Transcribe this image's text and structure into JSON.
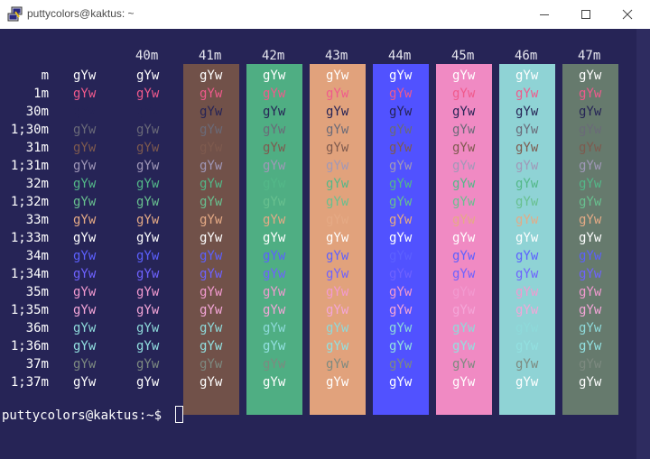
{
  "window": {
    "title": "puttycolors@kaktus: ~",
    "app_icon": "putty-icon",
    "buttons": {
      "minimize": "minimize-icon",
      "maximize": "maximize-icon",
      "close": "close-icon"
    }
  },
  "terminal": {
    "background": "#262456",
    "column_headers": [
      "40m",
      "41m",
      "42m",
      "43m",
      "44m",
      "45m",
      "46m",
      "47m"
    ],
    "column_backgrounds": [
      "",
      "#715149",
      "#4fae83",
      "#e1a27c",
      "#5152ff",
      "#f08ac3",
      "#8fd3d5",
      "#667a6d"
    ],
    "row_labels": [
      "m",
      "1m",
      "30m",
      "1;30m",
      "31m",
      "1;31m",
      "32m",
      "1;32m",
      "33m",
      "1;33m",
      "34m",
      "1;34m",
      "35m",
      "1;35m",
      "36m",
      "1;36m",
      "37m",
      "1;37m"
    ],
    "sample_text": "gYw",
    "row_colors": [
      "#ffffff",
      "#f05a8c",
      "#262456",
      "#6a6a78",
      "#7e5a4e",
      "#a098b8",
      "#53b888",
      "#68c08f",
      "#e5aa85",
      "#ffffff",
      "#5c60ff",
      "#6e62ff",
      "#f29ad0",
      "#f4a6d8",
      "#8edada",
      "#92e0e0",
      "#7d8a80",
      "#ffffff"
    ],
    "prompt_text": "puttycolors@kaktus:~$"
  }
}
